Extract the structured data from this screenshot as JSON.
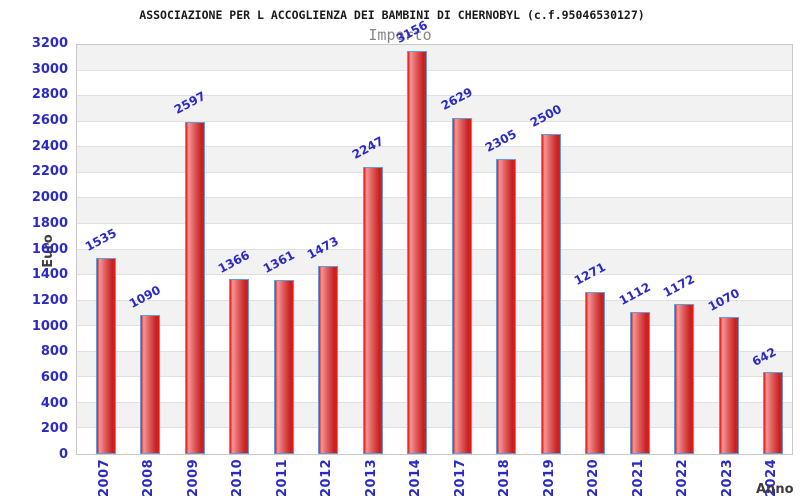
{
  "chart_data": {
    "type": "bar",
    "title": "ASSOCIAZIONE PER L ACCOGLIENZA DEI BAMBINI DI CHERNOBYL (c.f.95046530127)",
    "subtitle": "Importo",
    "xlabel": "Anno",
    "ylabel": "Euro",
    "categories": [
      "2007",
      "2008",
      "2009",
      "2010",
      "2011",
      "2012",
      "2013",
      "2014",
      "2017",
      "2018",
      "2019",
      "2020",
      "2021",
      "2022",
      "2023",
      "2024"
    ],
    "values": [
      1535,
      1090,
      2597,
      1366,
      1361,
      1473,
      2247,
      3156,
      2629,
      2305,
      2500,
      1271,
      1112,
      1172,
      1070,
      642
    ],
    "ylim": [
      0,
      3200
    ],
    "ytick_step": 200,
    "grid": true,
    "legend_position": "none",
    "band_pattern": "alternating-horizontal",
    "colors": {
      "value_label_blue": "#2b2bc4",
      "tick_label_blue": "#2b2bc4",
      "bar_red": "#e01010",
      "bar_highlight_pink": "#f29898",
      "bar_border_blue": "#5e9ede",
      "band_gray": "#f2f2f2",
      "gridline_gray": "#e0e0e0",
      "axis_title_gray": "#3d3d3d",
      "subtitle_gray": "#868686",
      "title_black": "#1a1a1a",
      "background": "#ffffff"
    }
  }
}
